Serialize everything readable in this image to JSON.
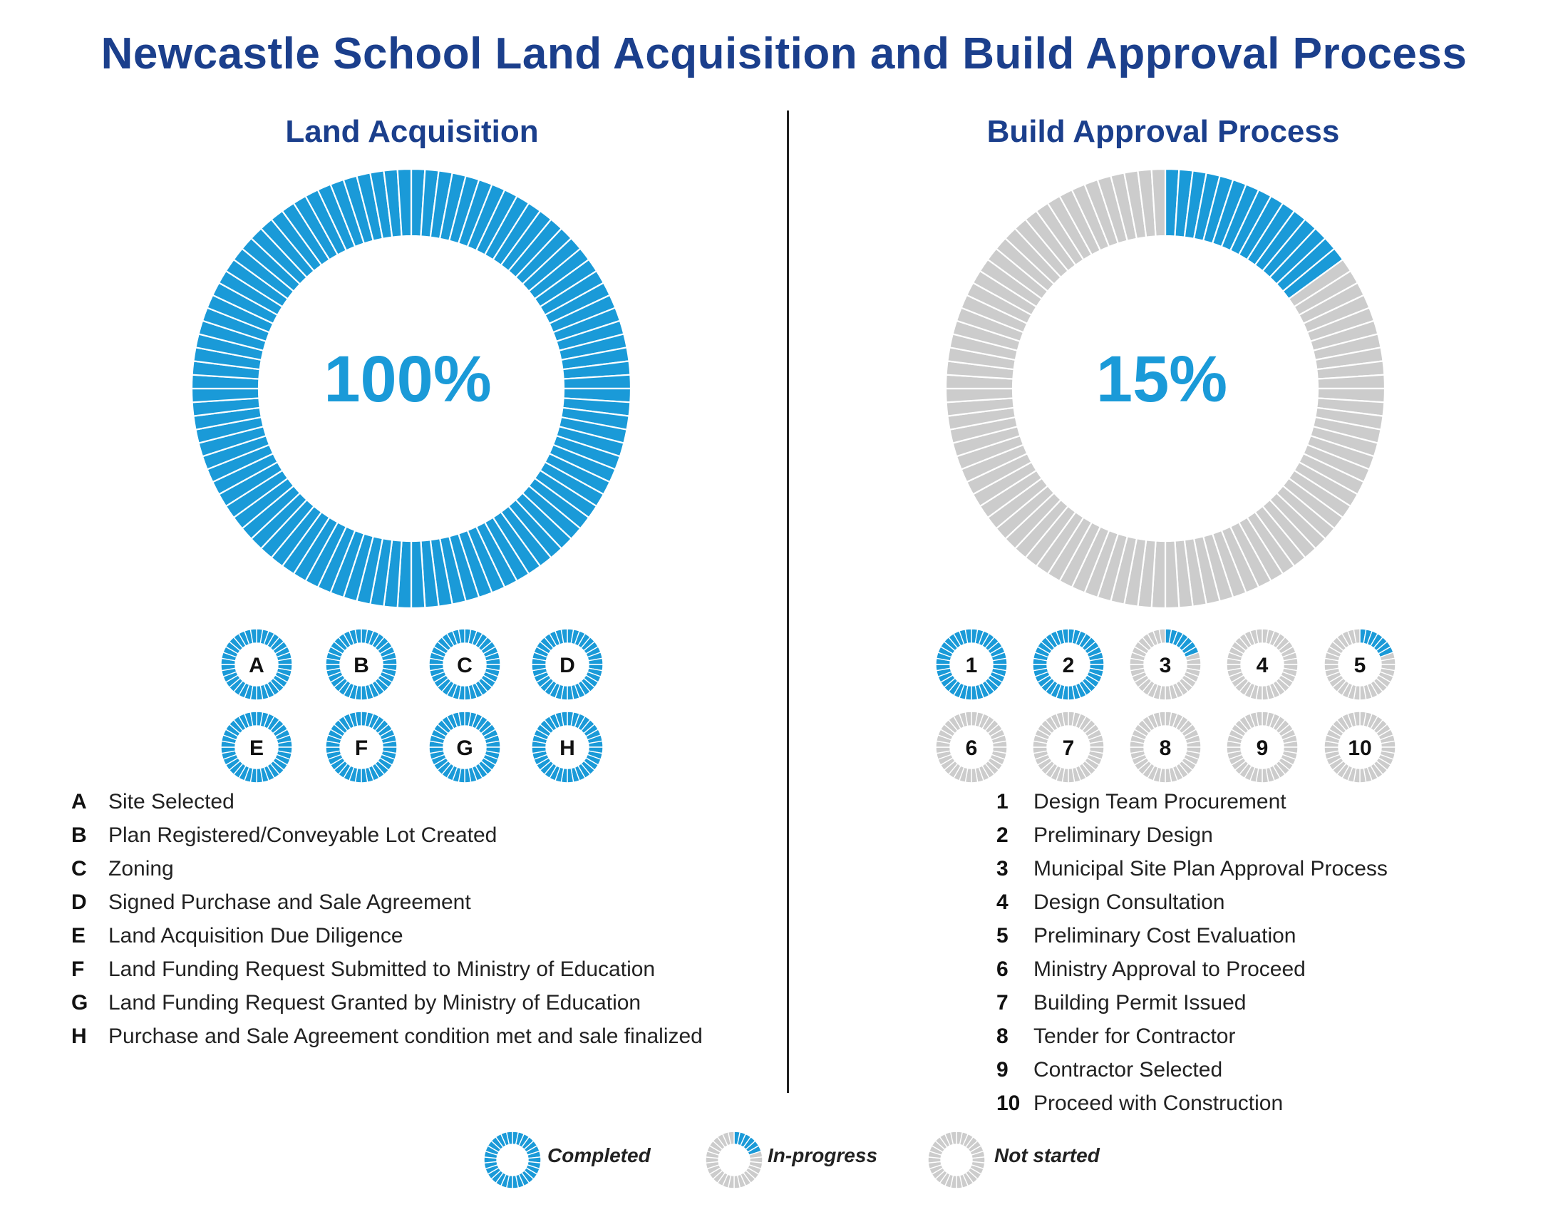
{
  "title": "Newcastle School Land Acquisition and Build Approval Process",
  "colors": {
    "completed": "#1a9ad8",
    "not_started": "#cccccc",
    "title": "#1b3f8c"
  },
  "chart_data": [
    {
      "type": "donut",
      "title": "Land Acquisition",
      "value_percent": 100,
      "value_label": "100%",
      "steps": [
        {
          "id": "A",
          "label": "Site Selected",
          "progress": 1.0
        },
        {
          "id": "B",
          "label": "Plan Registered/Conveyable Lot Created",
          "progress": 1.0
        },
        {
          "id": "C",
          "label": "Zoning",
          "progress": 1.0
        },
        {
          "id": "D",
          "label": "Signed Purchase and Sale Agreement",
          "progress": 1.0
        },
        {
          "id": "E",
          "label": "Land Acquisition Due Diligence",
          "progress": 1.0
        },
        {
          "id": "F",
          "label": "Land Funding Request Submitted to Ministry of Education",
          "progress": 1.0
        },
        {
          "id": "G",
          "label": "Land Funding Request Granted by Ministry of Education",
          "progress": 1.0
        },
        {
          "id": "H",
          "label": "Purchase and Sale Agreement condition met and sale finalized",
          "progress": 1.0
        }
      ]
    },
    {
      "type": "donut",
      "title": "Build Approval Process",
      "value_percent": 15,
      "value_label": "15%",
      "steps": [
        {
          "id": "1",
          "label": "Design Team Procurement",
          "progress": 1.0
        },
        {
          "id": "2",
          "label": "Preliminary Design",
          "progress": 1.0
        },
        {
          "id": "3",
          "label": "Municipal Site Plan Approval Process",
          "progress": 0.2
        },
        {
          "id": "4",
          "label": "Design Consultation",
          "progress": 0
        },
        {
          "id": "5",
          "label": "Preliminary Cost Evaluation",
          "progress": 0.2
        },
        {
          "id": "6",
          "label": "Ministry Approval to Proceed",
          "progress": 0
        },
        {
          "id": "7",
          "label": "Building Permit Issued",
          "progress": 0
        },
        {
          "id": "8",
          "label": "Tender for Contractor",
          "progress": 0
        },
        {
          "id": "9",
          "label": "Contractor Selected",
          "progress": 0
        },
        {
          "id": "10",
          "label": "Proceed with Construction",
          "progress": 0
        }
      ]
    }
  ],
  "status_legend": [
    {
      "label": "Completed",
      "progress": 1.0
    },
    {
      "label": "In-progress",
      "progress": 0.2
    },
    {
      "label": "Not started",
      "progress": 0
    }
  ]
}
